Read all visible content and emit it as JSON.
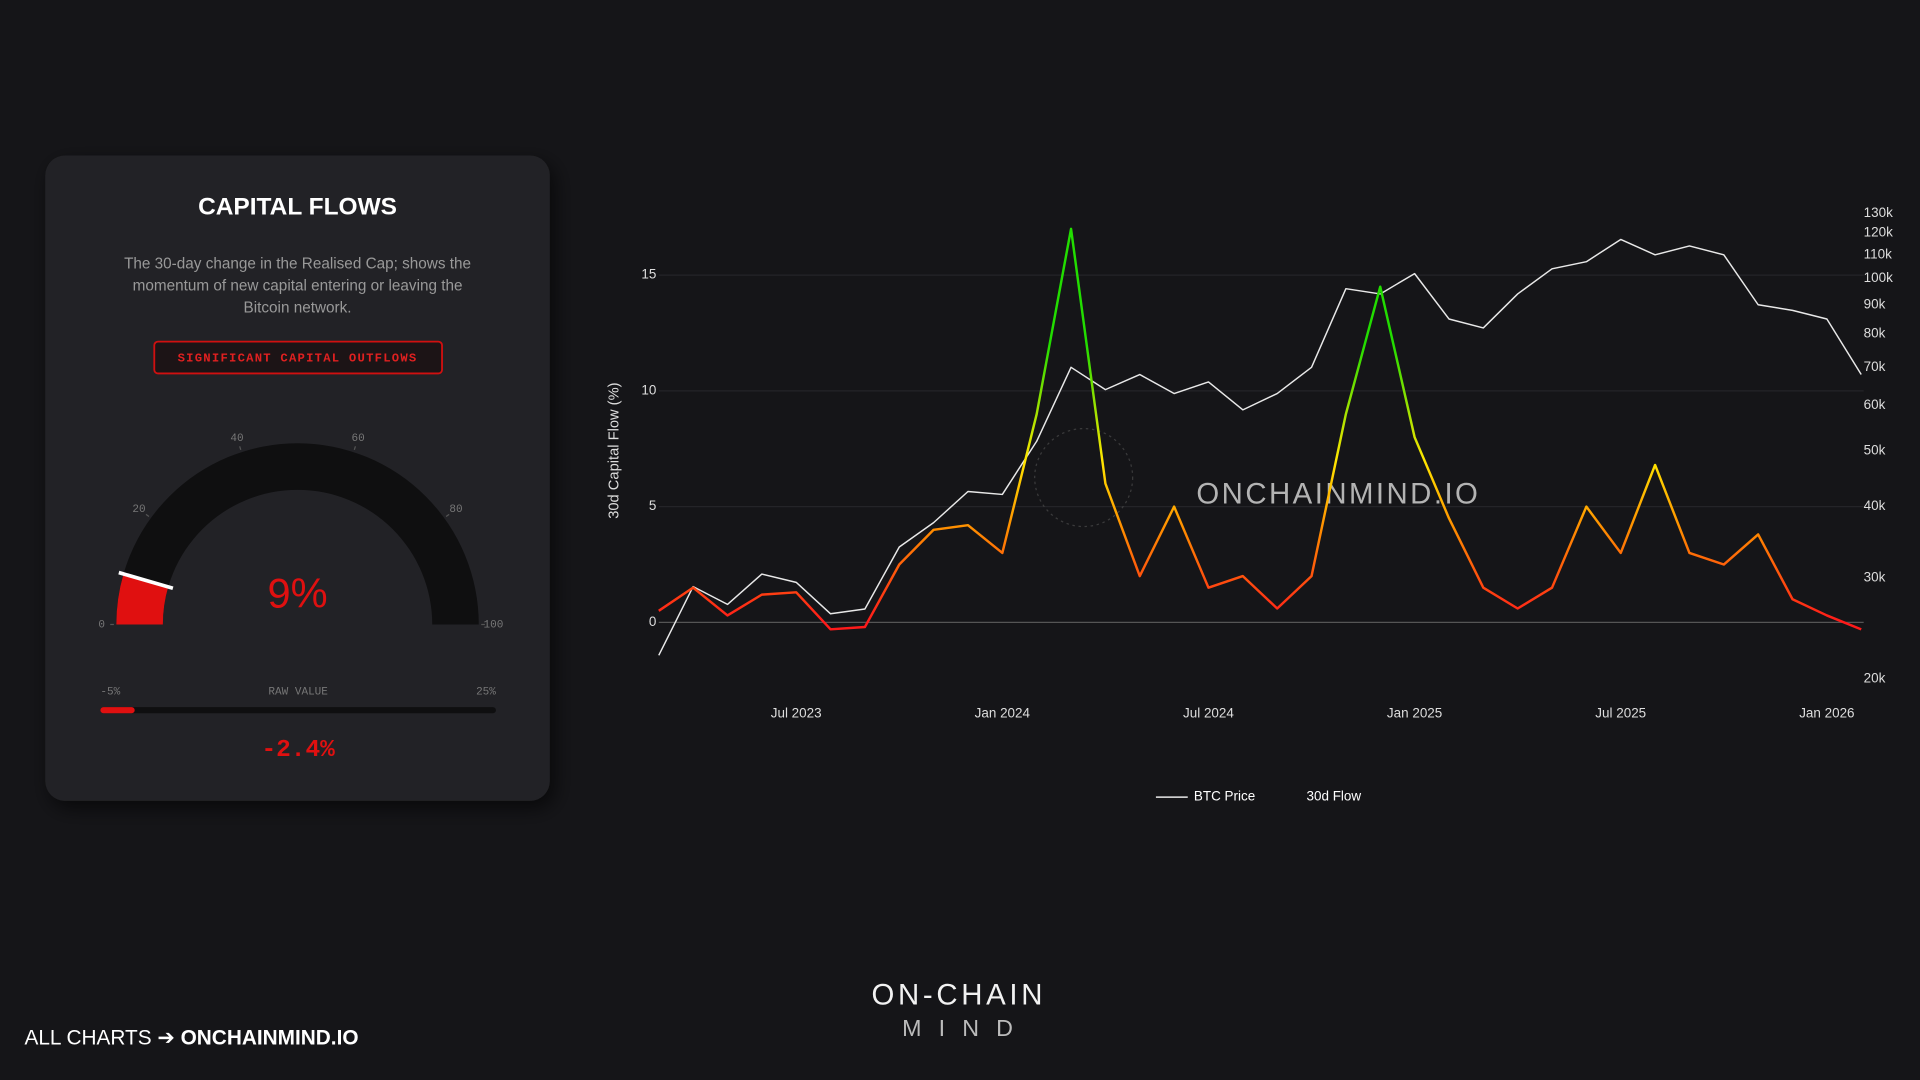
{
  "panel": {
    "title": "CAPITAL FLOWS",
    "description": [
      "The 30-day change in the Realised Cap; shows the",
      "momentum of new capital entering or leaving the",
      "Bitcoin network."
    ],
    "status": "SIGNIFICANT CAPITAL OUTFLOWS"
  },
  "chart_data": [
    {
      "type": "gauge",
      "value": 9,
      "value_label": "9%",
      "lim": [
        0,
        100
      ],
      "ticks": [
        0,
        20,
        40,
        60,
        80,
        100
      ],
      "color": "#e01010",
      "track_color": "#0f0f10"
    },
    {
      "type": "progress",
      "title": "RAW VALUE",
      "value": -2.4,
      "value_label": "-2.4%",
      "xlim": [
        -5,
        25
      ],
      "xticks": [
        {
          "value": -5,
          "label": "-5%"
        },
        {
          "value": 25,
          "label": "25%"
        }
      ],
      "color": "#e01010"
    },
    {
      "type": "line",
      "y_label": "30d Capital Flow (%)",
      "watermark": "ONCHAINMIND.IO",
      "x": [
        "2023-03",
        "2023-04",
        "2023-05",
        "2023-06",
        "2023-07",
        "2023-08",
        "2023-09",
        "2023-10",
        "2023-11",
        "2023-12",
        "2024-01",
        "2024-02",
        "2024-03",
        "2024-04",
        "2024-05",
        "2024-06",
        "2024-07",
        "2024-08",
        "2024-09",
        "2024-10",
        "2024-11",
        "2024-12",
        "2025-01",
        "2025-02",
        "2025-03",
        "2025-04",
        "2025-05",
        "2025-06",
        "2025-07",
        "2025-08",
        "2025-09",
        "2025-10",
        "2025-11",
        "2025-12",
        "2026-01",
        "2026-02"
      ],
      "xlim": [
        "2023-03",
        "2026-02"
      ],
      "xticks": [
        {
          "value": "2023-07",
          "label": "Jul 2023"
        },
        {
          "value": "2024-01",
          "label": "Jan 2024"
        },
        {
          "value": "2024-07",
          "label": "Jul 2024"
        },
        {
          "value": "2025-01",
          "label": "Jan 2025"
        },
        {
          "value": "2025-07",
          "label": "Jul 2025"
        },
        {
          "value": "2026-01",
          "label": "Jan 2026"
        }
      ],
      "ylim": [
        -3,
        18
      ],
      "yticks": [
        0,
        5,
        10,
        15
      ],
      "y2lim": [
        19000,
        134000
      ],
      "y2log": true,
      "y2ticks": [
        {
          "value": 20000,
          "label": "20k"
        },
        {
          "value": 30000,
          "label": "30k"
        },
        {
          "value": 40000,
          "label": "40k"
        },
        {
          "value": 50000,
          "label": "50k"
        },
        {
          "value": 60000,
          "label": "60k"
        },
        {
          "value": 70000,
          "label": "70k"
        },
        {
          "value": 80000,
          "label": "80k"
        },
        {
          "value": 90000,
          "label": "90k"
        },
        {
          "value": 100000,
          "label": "100k"
        },
        {
          "value": 110000,
          "label": "110k"
        },
        {
          "value": 120000,
          "label": "120k"
        },
        {
          "value": 130000,
          "label": "130k"
        }
      ],
      "grid": true,
      "series": [
        {
          "name": "BTC Price",
          "color": "#e8e8e8",
          "axis": "y2",
          "values": [
            22000,
            29000,
            27000,
            30500,
            29500,
            26000,
            26500,
            34000,
            37500,
            42500,
            42000,
            52000,
            70000,
            64000,
            68000,
            63000,
            66000,
            59000,
            63000,
            70000,
            96000,
            94000,
            102000,
            85000,
            82000,
            94000,
            104000,
            107000,
            117000,
            110000,
            114000,
            110000,
            90000,
            88000,
            85000,
            68000
          ]
        },
        {
          "name": "30d Flow",
          "colorscale": [
            [
              0,
              "#ff1a1a"
            ],
            [
              4,
              "#ff8c00"
            ],
            [
              7,
              "#ffe600"
            ],
            [
              12,
              "#22dd00"
            ]
          ],
          "values": [
            0.5,
            1.5,
            0.3,
            1.2,
            1.3,
            -0.3,
            -0.2,
            2.5,
            4.0,
            4.2,
            3.0,
            9.0,
            17.0,
            6.0,
            2.0,
            5.0,
            1.5,
            2.0,
            0.6,
            2.0,
            9.0,
            14.5,
            8.0,
            4.5,
            1.5,
            0.6,
            1.5,
            5.0,
            3.0,
            6.8,
            3.0,
            2.5,
            3.8,
            1.0,
            0.3,
            -0.3
          ]
        }
      ]
    }
  ],
  "footer": {
    "link_prefix": "ALL CHARTS ➔ ",
    "link": "ONCHAINMIND.IO",
    "logo_top": "ON-CHAIN",
    "logo_bottom": "MIND"
  }
}
